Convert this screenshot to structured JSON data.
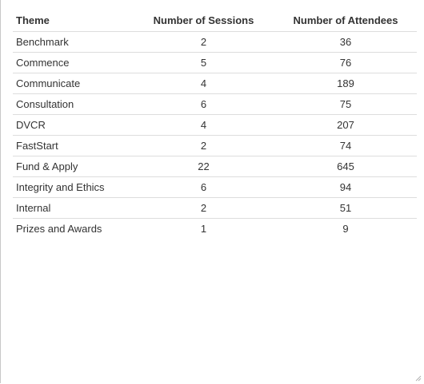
{
  "table": {
    "headers": {
      "theme": "Theme",
      "sessions": "Number of Sessions",
      "attendees": "Number of Attendees"
    },
    "rows": [
      {
        "theme": "Benchmark",
        "sessions": "2",
        "attendees": "36"
      },
      {
        "theme": "Commence",
        "sessions": "5",
        "attendees": "76"
      },
      {
        "theme": "Communicate",
        "sessions": "4",
        "attendees": "189"
      },
      {
        "theme": "Consultation",
        "sessions": "6",
        "attendees": "75"
      },
      {
        "theme": "DVCR",
        "sessions": "4",
        "attendees": "207"
      },
      {
        "theme": "FastStart",
        "sessions": "2",
        "attendees": "74"
      },
      {
        "theme": "Fund & Apply",
        "sessions": "22",
        "attendees": "645"
      },
      {
        "theme": "Integrity and Ethics",
        "sessions": "6",
        "attendees": "94"
      },
      {
        "theme": "Internal",
        "sessions": "2",
        "attendees": "51"
      },
      {
        "theme": "Prizes and Awards",
        "sessions": "1",
        "attendees": "9"
      }
    ]
  },
  "icons": {
    "resize": "resize-grip-icon"
  }
}
